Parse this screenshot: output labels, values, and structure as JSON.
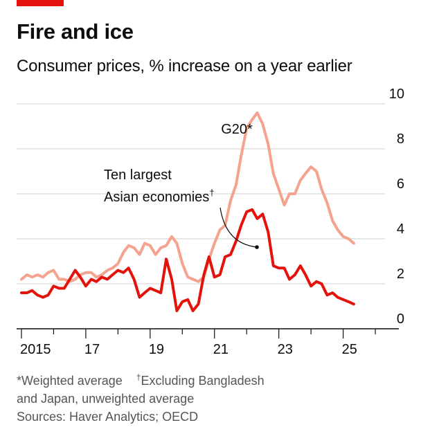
{
  "header": {
    "title": "Fire and ice",
    "subtitle": "Consumer prices, % increase on a year earlier"
  },
  "colors": {
    "g20": "#f4a38e",
    "asian": "#e3120b",
    "grid": "#cfcfcf",
    "axis": "#0d0d0d",
    "accent": "#e3120b"
  },
  "annotations": {
    "g20_label": "G20*",
    "asian_label_line1": "Ten largest",
    "asian_label_line2": "Asian economies",
    "asian_label_mark": "†"
  },
  "footnotes": {
    "note1_mark": "*",
    "note1": "Weighted average",
    "note2_mark": "†",
    "note2_line1": "Excluding Bangladesh",
    "note2_line2": "and Japan, unweighted average",
    "sources": "Sources: Haver Analytics; OECD"
  },
  "chart_data": {
    "type": "line",
    "title": "Fire and ice",
    "subtitle": "Consumer prices, % increase on a year earlier",
    "xlim": [
      2014.85,
      2026.3
    ],
    "ylim": [
      0,
      10
    ],
    "y_ticks": [
      0,
      2,
      4,
      6,
      8,
      10
    ],
    "y_axis_side": "right",
    "x_ticks": [
      {
        "value": 2015,
        "label": "2015"
      },
      {
        "value": 2017,
        "label": "17"
      },
      {
        "value": 2019,
        "label": "19"
      },
      {
        "value": 2021,
        "label": "21"
      },
      {
        "value": 2023,
        "label": "23"
      },
      {
        "value": 2025,
        "label": "25"
      }
    ],
    "grid": true,
    "series": [
      {
        "name": "G20*",
        "color": "#f4a38e",
        "x": [
          2015.0,
          2015.17,
          2015.33,
          2015.5,
          2015.67,
          2015.83,
          2016.0,
          2016.17,
          2016.33,
          2016.5,
          2016.67,
          2016.83,
          2017.0,
          2017.17,
          2017.33,
          2017.5,
          2017.67,
          2017.83,
          2018.0,
          2018.17,
          2018.33,
          2018.5,
          2018.67,
          2018.83,
          2019.0,
          2019.17,
          2019.33,
          2019.5,
          2019.67,
          2019.83,
          2020.0,
          2020.17,
          2020.33,
          2020.5,
          2020.67,
          2020.83,
          2021.0,
          2021.17,
          2021.33,
          2021.5,
          2021.67,
          2021.83,
          2022.0,
          2022.17,
          2022.33,
          2022.5,
          2022.67,
          2022.83,
          2023.0,
          2023.17,
          2023.33,
          2023.5,
          2023.67,
          2023.83,
          2024.0,
          2024.17,
          2024.33,
          2024.5,
          2024.67,
          2024.83,
          2025.0,
          2025.17,
          2025.33
        ],
        "values": [
          2.2,
          2.4,
          2.3,
          2.4,
          2.3,
          2.5,
          2.6,
          2.2,
          2.2,
          2.1,
          2.2,
          2.4,
          2.5,
          2.5,
          2.3,
          2.4,
          2.6,
          2.7,
          2.9,
          3.4,
          3.7,
          3.6,
          3.3,
          3.8,
          3.7,
          3.3,
          3.6,
          3.7,
          4.1,
          3.8,
          2.9,
          2.3,
          2.2,
          2.1,
          2.3,
          3.1,
          3.8,
          4.4,
          4.6,
          5.7,
          6.4,
          7.7,
          8.9,
          9.3,
          9.6,
          9.1,
          8.2,
          6.9,
          6.2,
          5.5,
          6.0,
          6.0,
          6.6,
          6.9,
          7.2,
          7.0,
          6.2,
          5.6,
          4.8,
          4.4,
          4.1,
          4.0,
          3.8
        ]
      },
      {
        "name": "Ten largest Asian economies†",
        "color": "#e3120b",
        "x": [
          2015.0,
          2015.17,
          2015.33,
          2015.5,
          2015.67,
          2015.83,
          2016.0,
          2016.17,
          2016.33,
          2016.5,
          2016.67,
          2016.83,
          2017.0,
          2017.17,
          2017.33,
          2017.5,
          2017.67,
          2017.83,
          2018.0,
          2018.17,
          2018.33,
          2018.5,
          2018.67,
          2018.83,
          2019.0,
          2019.17,
          2019.33,
          2019.5,
          2019.67,
          2019.83,
          2020.0,
          2020.17,
          2020.33,
          2020.5,
          2020.67,
          2020.83,
          2021.0,
          2021.17,
          2021.33,
          2021.5,
          2021.67,
          2021.83,
          2022.0,
          2022.17,
          2022.33,
          2022.5,
          2022.67,
          2022.83,
          2023.0,
          2023.17,
          2023.33,
          2023.5,
          2023.67,
          2023.83,
          2024.0,
          2024.17,
          2024.33,
          2024.5,
          2024.67,
          2024.83,
          2025.0,
          2025.17,
          2025.33
        ],
        "values": [
          1.6,
          1.6,
          1.7,
          1.5,
          1.4,
          1.5,
          1.9,
          1.8,
          1.8,
          2.2,
          2.6,
          2.3,
          1.9,
          2.2,
          2.1,
          2.3,
          2.2,
          2.4,
          2.6,
          2.5,
          2.7,
          2.2,
          1.4,
          1.6,
          1.8,
          1.7,
          1.6,
          3.1,
          2.2,
          0.8,
          1.2,
          1.3,
          0.8,
          1.1,
          2.4,
          3.2,
          2.3,
          2.4,
          3.2,
          3.3,
          3.9,
          4.6,
          5.2,
          5.3,
          4.9,
          5.1,
          4.3,
          2.8,
          2.7,
          2.7,
          2.2,
          2.4,
          2.8,
          2.4,
          1.9,
          2.1,
          2.0,
          1.5,
          1.6,
          1.4,
          1.3,
          1.2,
          1.1
        ]
      }
    ]
  }
}
